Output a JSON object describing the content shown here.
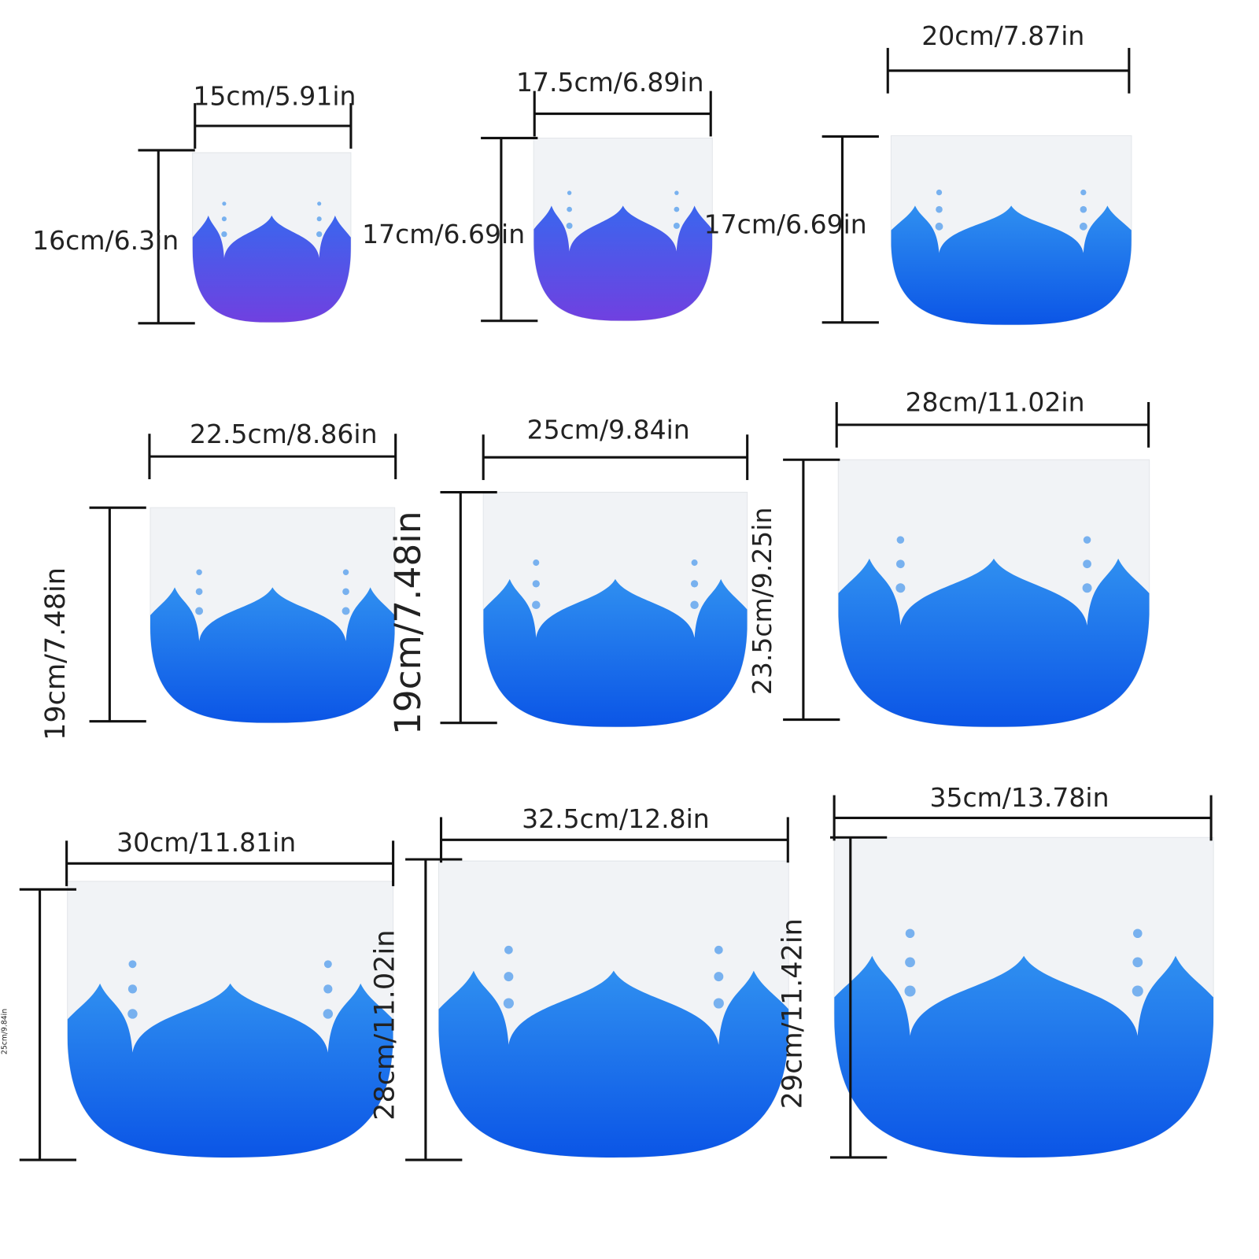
{
  "bowls": [
    {
      "width": "15cm/5.91in",
      "height": "16cm/6.3in"
    },
    {
      "width": "17.5cm/6.89in",
      "height": "17cm/6.69in"
    },
    {
      "width": "20cm/7.87in",
      "height": "17cm/6.69in"
    },
    {
      "width": "22.5cm/8.86in",
      "height": "19cm/7.48in"
    },
    {
      "width": "25cm/9.84in",
      "height": "19cm/7.48in"
    },
    {
      "width": "28cm/11.02in",
      "height": "23.5cm/9.25in"
    },
    {
      "width": "30cm/11.81in",
      "height": "25cm/9.84in"
    },
    {
      "width": "32.5cm/12.8in",
      "height": "28cm/11.02in"
    },
    {
      "width": "35cm/13.78in",
      "height": "29cm/11.42in"
    }
  ]
}
